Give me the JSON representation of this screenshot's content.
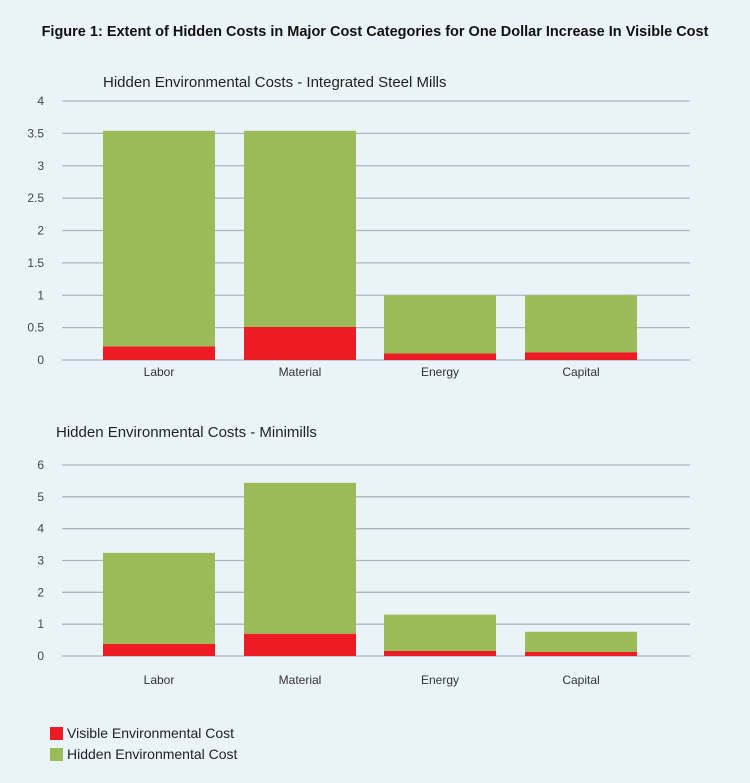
{
  "figure_title": "Figure 1: Extent of Hidden Costs in Major Cost Categories for One Dollar Increase In Visible Cost",
  "colors": {
    "visible": "#ed1c24",
    "hidden": "#9bbb59",
    "grid": "#aab5bc",
    "background": "#eaf3f7"
  },
  "legend": [
    {
      "label": "Visible Environmental Cost",
      "color": "#ed1c24"
    },
    {
      "label": "Hidden Environmental Cost",
      "color": "#9bbb59"
    }
  ],
  "chart_data": [
    {
      "type": "bar",
      "stacked": true,
      "title": "Hidden Environmental Costs - Integrated Steel Mills",
      "categories": [
        "Labor",
        "Material",
        "Energy",
        "Capital"
      ],
      "ylim": [
        0,
        4
      ],
      "yticks": [
        "0",
        "0.5",
        "1",
        "1.5",
        "2",
        "2.5",
        "3",
        "3.5",
        "4"
      ],
      "grid": true,
      "series": [
        {
          "name": "Visible Environmental Cost",
          "values": [
            0.21,
            0.51,
            0.1,
            0.12
          ]
        },
        {
          "name": "Hidden Environmental Cost",
          "values": [
            3.33,
            3.03,
            0.9,
            0.88
          ]
        }
      ]
    },
    {
      "type": "bar",
      "stacked": true,
      "title": "Hidden Environmental Costs - Minimills",
      "categories": [
        "Labor",
        "Material",
        "Energy",
        "Capital"
      ],
      "ylim": [
        0,
        6
      ],
      "yticks": [
        "0",
        "1",
        "2",
        "3",
        "4",
        "5",
        "6"
      ],
      "grid": true,
      "series": [
        {
          "name": "Visible Environmental Cost",
          "values": [
            0.38,
            0.7,
            0.16,
            0.13
          ]
        },
        {
          "name": "Hidden Environmental Cost",
          "values": [
            2.86,
            4.74,
            1.14,
            0.63
          ]
        }
      ]
    }
  ]
}
